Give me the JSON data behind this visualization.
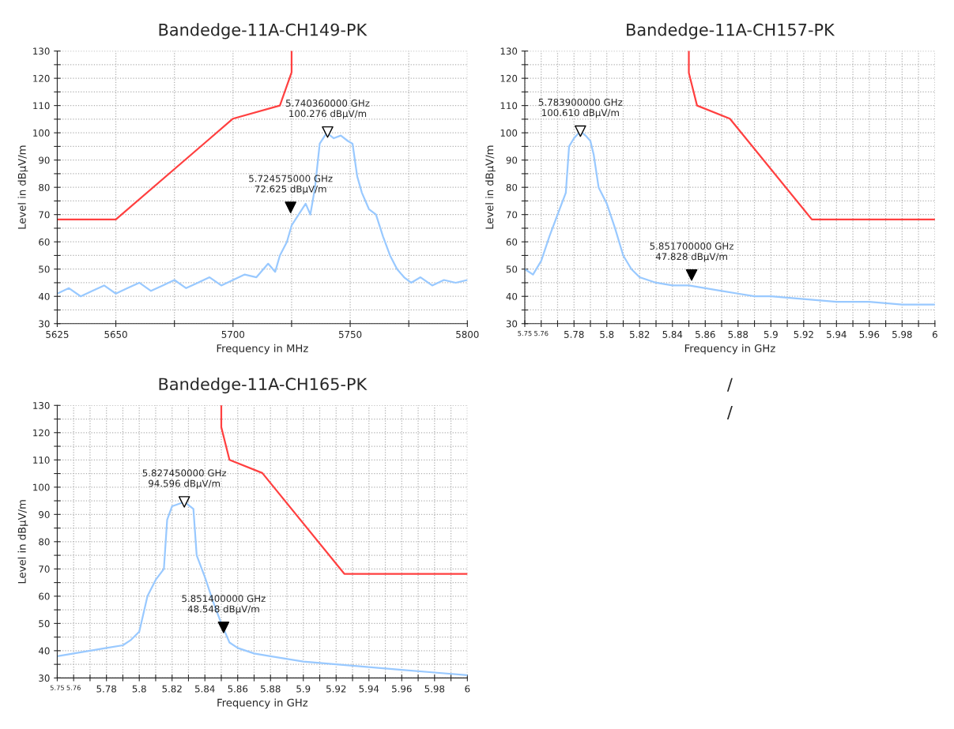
{
  "chart_data": [
    {
      "type": "line",
      "title": "Bandedge-11A-CH149-PK",
      "xlabel": "Frequency in MHz",
      "ylabel": "Level in dBµV/m",
      "grid": true,
      "xlim": [
        5625,
        5800
      ],
      "xticks": [
        5625,
        5650,
        {
          "value": 5675,
          "label": null
        },
        5700,
        {
          "value": 5725,
          "label": null
        },
        5750,
        {
          "value": 5775,
          "label": null
        },
        5800
      ],
      "ylim": [
        30,
        130
      ],
      "yticks": [
        30,
        {
          "value": 35,
          "label": null
        },
        40,
        {
          "value": 45,
          "label": null
        },
        50,
        {
          "value": 55,
          "label": null
        },
        60,
        {
          "value": 65,
          "label": null
        },
        70,
        {
          "value": 75,
          "label": null
        },
        80,
        {
          "value": 85,
          "label": null
        },
        90,
        {
          "value": 95,
          "label": null
        },
        100,
        {
          "value": 105,
          "label": null
        },
        110,
        {
          "value": 115,
          "label": null
        },
        120,
        {
          "value": 125,
          "label": null
        },
        130
      ],
      "series": [
        {
          "color": "#99c9ff",
          "x": [
            5625,
            5630,
            5635,
            5640,
            5645,
            5650,
            5655,
            5660,
            5665,
            5670,
            5675,
            5680,
            5685,
            5690,
            5695,
            5700,
            5705,
            5710,
            5715,
            5718,
            5720,
            5723,
            5725,
            5728,
            5731,
            5733,
            5735,
            5737,
            5740,
            5743,
            5746,
            5749,
            5751,
            5753,
            5755,
            5758,
            5761,
            5764,
            5767,
            5770,
            5773,
            5776,
            5780,
            5785,
            5790,
            5795,
            5800
          ],
          "values": [
            41,
            43,
            40,
            42,
            44,
            41,
            43,
            45,
            42,
            44,
            46,
            43,
            45,
            47,
            44,
            46,
            48,
            47,
            52,
            49,
            55,
            60,
            66,
            70,
            74,
            70,
            80,
            96,
            100,
            98,
            99,
            97,
            96,
            84,
            78,
            72,
            70,
            62,
            55,
            50,
            47,
            45,
            47,
            44,
            46,
            45,
            46
          ]
        },
        {
          "color": "#ff4040",
          "x": [
            5625,
            5650,
            5700,
            5720,
            5725,
            5725
          ],
          "values": [
            68.2,
            68.2,
            105.2,
            110,
            122.2,
            130
          ]
        },
        {
          "type": "scatter",
          "marker": "triangle",
          "color": "#000000",
          "x": [
            5724.575
          ],
          "values": [
            72.625
          ]
        },
        {
          "type": "scatter",
          "marker": "triangle",
          "color": "#ffffff",
          "x": [
            5740.36
          ],
          "values": [
            100.276
          ]
        }
      ],
      "annotations": [
        {
          "text": "5.724575000 GHz\n72.625 dBµV/m",
          "x": 5724.575,
          "y": 72.625
        },
        {
          "text": "5.740360000 GHz\n100.276 dBµV/m",
          "x": 5740.36,
          "y": 100.276
        }
      ]
    },
    {
      "type": "line",
      "title": "Bandedge-11A-CH157-PK",
      "xlabel": "Frequency in GHz",
      "ylabel": "Level in dBµV/m",
      "grid": true,
      "xlim": [
        5.75,
        6
      ],
      "xticks": [
        5.75,
        5.76,
        {
          "value": 5.77,
          "label": null
        },
        5.78,
        {
          "value": 5.79,
          "label": null
        },
        5.8,
        {
          "value": 5.81,
          "label": null
        },
        5.82,
        {
          "value": 5.83,
          "label": null
        },
        5.84,
        {
          "value": 5.85,
          "label": null
        },
        5.86,
        {
          "value": 5.87,
          "label": null
        },
        5.88,
        {
          "value": 5.89,
          "label": null
        },
        5.9,
        {
          "value": 5.91,
          "label": null
        },
        5.92,
        {
          "value": 5.93,
          "label": null
        },
        5.94,
        {
          "value": 5.95,
          "label": null
        },
        5.96,
        {
          "value": 5.97,
          "label": null
        },
        5.98,
        {
          "value": 5.99,
          "label": null
        },
        6
      ],
      "ylim": [
        30,
        130
      ],
      "yticks": [
        30,
        {
          "value": 35,
          "label": null
        },
        40,
        {
          "value": 45,
          "label": null
        },
        50,
        {
          "value": 55,
          "label": null
        },
        60,
        {
          "value": 65,
          "label": null
        },
        70,
        {
          "value": 75,
          "label": null
        },
        80,
        {
          "value": 85,
          "label": null
        },
        90,
        {
          "value": 95,
          "label": null
        },
        100,
        {
          "value": 105,
          "label": null
        },
        110,
        {
          "value": 115,
          "label": null
        },
        120,
        {
          "value": 125,
          "label": null
        },
        130
      ],
      "series": [
        {
          "color": "#99c9ff",
          "x": [
            5.75,
            5.755,
            5.76,
            5.765,
            5.77,
            5.775,
            5.777,
            5.78,
            5.7839,
            5.787,
            5.79,
            5.792,
            5.795,
            5.8,
            5.805,
            5.81,
            5.815,
            5.82,
            5.83,
            5.84,
            5.85,
            5.86,
            5.87,
            5.88,
            5.89,
            5.9,
            5.92,
            5.94,
            5.96,
            5.98,
            6
          ],
          "values": [
            50,
            48,
            53,
            62,
            70,
            78,
            95,
            98,
            100.61,
            99,
            97,
            92,
            80,
            74,
            65,
            55,
            50,
            47,
            45,
            44,
            44,
            43,
            42,
            41,
            40,
            40,
            39,
            38,
            38,
            37,
            37
          ]
        },
        {
          "color": "#ff4040",
          "x": [
            5.85,
            5.85,
            5.855,
            5.875,
            5.925,
            6
          ],
          "values": [
            130,
            122,
            110,
            105.2,
            68.2,
            68.2
          ]
        },
        {
          "type": "scatter",
          "marker": "triangle",
          "color": "#000000",
          "x": [
            5.8517
          ],
          "values": [
            47.828
          ]
        },
        {
          "type": "scatter",
          "marker": "triangle",
          "color": "#ffffff",
          "x": [
            5.7839
          ],
          "values": [
            100.61
          ]
        }
      ],
      "annotations": [
        {
          "text": "5.851700000 GHz\n47.828 dBµV/m",
          "x": 5.8517,
          "y": 47.828
        },
        {
          "text": "5.783900000 GHz\n100.610 dBµV/m",
          "x": 5.7839,
          "y": 100.61
        }
      ]
    },
    {
      "type": "line",
      "title": "Bandedge-11A-CH165-PK",
      "xlabel": "Frequency in GHz",
      "ylabel": "Level in dBµV/m",
      "grid": true,
      "xlim": [
        5.75,
        6
      ],
      "xticks": [
        5.75,
        5.76,
        {
          "value": 5.77,
          "label": null
        },
        5.78,
        {
          "value": 5.79,
          "label": null
        },
        5.8,
        {
          "value": 5.81,
          "label": null
        },
        5.82,
        {
          "value": 5.83,
          "label": null
        },
        5.84,
        {
          "value": 5.85,
          "label": null
        },
        5.86,
        {
          "value": 5.87,
          "label": null
        },
        5.88,
        {
          "value": 5.89,
          "label": null
        },
        5.9,
        {
          "value": 5.91,
          "label": null
        },
        5.92,
        {
          "value": 5.93,
          "label": null
        },
        5.94,
        {
          "value": 5.95,
          "label": null
        },
        5.96,
        {
          "value": 5.97,
          "label": null
        },
        5.98,
        {
          "value": 5.99,
          "label": null
        },
        6
      ],
      "ylim": [
        30,
        130
      ],
      "yticks": [
        30,
        {
          "value": 35,
          "label": null
        },
        40,
        {
          "value": 45,
          "label": null
        },
        50,
        {
          "value": 55,
          "label": null
        },
        60,
        {
          "value": 65,
          "label": null
        },
        70,
        {
          "value": 75,
          "label": null
        },
        80,
        {
          "value": 85,
          "label": null
        },
        90,
        {
          "value": 95,
          "label": null
        },
        100,
        {
          "value": 105,
          "label": null
        },
        110,
        {
          "value": 115,
          "label": null
        },
        120,
        {
          "value": 125,
          "label": null
        },
        130
      ],
      "series": [
        {
          "color": "#99c9ff",
          "x": [
            5.75,
            5.76,
            5.77,
            5.78,
            5.79,
            5.795,
            5.8,
            5.805,
            5.81,
            5.815,
            5.817,
            5.82,
            5.8275,
            5.833,
            5.835,
            5.84,
            5.845,
            5.85,
            5.855,
            5.86,
            5.87,
            5.88,
            5.9,
            5.92,
            5.94,
            5.96,
            5.98,
            6
          ],
          "values": [
            38,
            39,
            40,
            41,
            42,
            44,
            47,
            60,
            66,
            70,
            88,
            93,
            94.6,
            92,
            75,
            67,
            58,
            50,
            43,
            41,
            39,
            38,
            36,
            35,
            34,
            33,
            32,
            31
          ]
        },
        {
          "color": "#ff4040",
          "x": [
            5.85,
            5.85,
            5.855,
            5.875,
            5.925,
            6
          ],
          "values": [
            130,
            122,
            110,
            105.2,
            68.2,
            68.2
          ]
        },
        {
          "type": "scatter",
          "marker": "triangle",
          "color": "#000000",
          "x": [
            5.8514
          ],
          "values": [
            48.548
          ]
        },
        {
          "type": "scatter",
          "marker": "triangle",
          "color": "#ffffff",
          "x": [
            5.82745
          ],
          "values": [
            94.596
          ]
        }
      ],
      "annotations": [
        {
          "text": "5.851400000 GHz\n48.548 dBµV/m",
          "x": 5.8514,
          "y": 48.548
        },
        {
          "text": "5.827450000 GHz\n94.596 dBµV/m",
          "x": 5.82745,
          "y": 94.596
        }
      ]
    },
    {
      "type": "other",
      "title": "/",
      "annotations": [
        "/"
      ]
    }
  ]
}
